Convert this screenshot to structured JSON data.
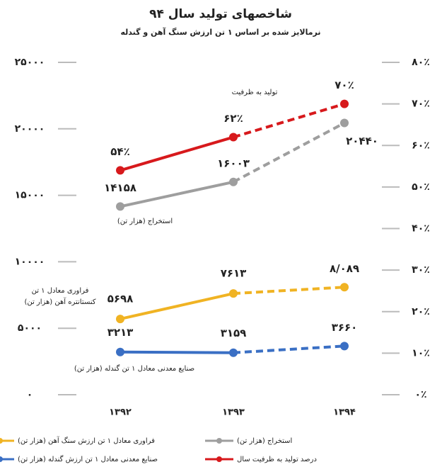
{
  "chart_data": {
    "type": "line",
    "title": "شاخصهای تولید سال ۹۴",
    "subtitle": "نرمالایز شده بر اساس ۱ تن ارزش سنگ آهن و گندله",
    "categories": [
      "۱۳۹۲",
      "۱۳۹۳",
      "۱۳۹۴"
    ],
    "series": [
      {
        "name": "استخراج (هزار تن)",
        "color": "#9e9e9e",
        "values": [
          14158,
          16003,
          20440
        ],
        "value_labels": [
          "۱۴۱۵۸",
          "۱۶۰۰۳",
          "۲۰۴۴۰"
        ]
      },
      {
        "name": "فراوری معادل ۱ تن ارزش سنگ آهن (هزار تن)",
        "color": "#f0b323",
        "values": [
          5698,
          7613,
          8089
        ],
        "value_labels": [
          "۵۶۹۸",
          "۷۶۱۳",
          "۸/۰۸۹"
        ]
      },
      {
        "name": "صنایع معدنی معادل ۱ تن ارزش گندله (هزار تن)",
        "color": "#3a6fc4",
        "values": [
          3213,
          3159,
          3660
        ],
        "value_labels": [
          "۳۲۱۳",
          "۳۱۵۹",
          "۳۶۶۰"
        ]
      },
      {
        "name": "درصد تولید به ظرفیت سال",
        "color": "#d7191c",
        "axis": "y2",
        "values": [
          54,
          62,
          70
        ],
        "value_labels": [
          "۵۴٪",
          "۶۲٪",
          "۷۰٪"
        ]
      }
    ],
    "annotations": [
      "استخراج (هزار تن)",
      "فراوری معادل ۱ تن",
      "کنستانتره آهن (هزار تن)",
      "صنایع معدنی معادل ۱ تن گندله (هزار تن)",
      "تولید به ظرفیت"
    ],
    "ylim": [
      0,
      25000
    ],
    "yticks": [
      {
        "value": 0,
        "label": "۰"
      },
      {
        "value": 5000,
        "label": "۵۰۰۰"
      },
      {
        "value": 10000,
        "label": "۱۰۰۰۰"
      },
      {
        "value": 15000,
        "label": "۱۵۰۰۰"
      },
      {
        "value": 20000,
        "label": "۲۰۰۰۰"
      },
      {
        "value": 25000,
        "label": "۲۵۰۰۰"
      }
    ],
    "y2lim": [
      0,
      80
    ],
    "y2ticks": [
      {
        "value": 0,
        "label": "۰٪"
      },
      {
        "value": 10,
        "label": "۱۰٪"
      },
      {
        "value": 20,
        "label": "۲۰٪"
      },
      {
        "value": 30,
        "label": "۳۰٪"
      },
      {
        "value": 40,
        "label": "۴۰٪"
      },
      {
        "value": 50,
        "label": "۵۰٪"
      },
      {
        "value": 60,
        "label": "۶۰٪"
      },
      {
        "value": 70,
        "label": "۷۰٪"
      },
      {
        "value": 80,
        "label": "۸۰٪"
      }
    ],
    "legend": "bottom"
  }
}
